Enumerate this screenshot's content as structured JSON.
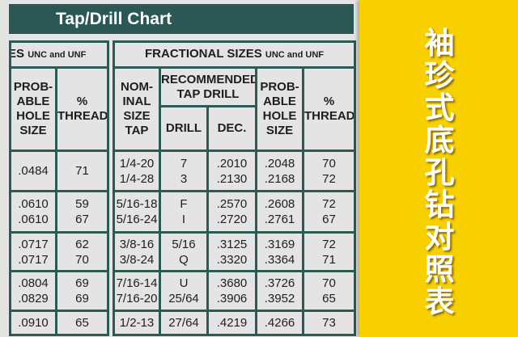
{
  "title": "Tap/Drill Chart",
  "left_table": {
    "group_header_main": "ES",
    "group_header_sub": "UNC and UNF",
    "headers": {
      "hole": [
        "PROB-",
        "ABLE",
        "HOLE",
        "SIZE"
      ],
      "thread": [
        "%",
        "THREAD"
      ]
    },
    "rows": [
      {
        "hole": [
          ".0484"
        ],
        "thread": [
          "71"
        ]
      },
      {
        "hole": [
          ".0610",
          ".0610"
        ],
        "thread": [
          "59",
          "67"
        ]
      },
      {
        "hole": [
          ".0717",
          ".0717"
        ],
        "thread": [
          "62",
          "70"
        ]
      },
      {
        "hole": [
          ".0804",
          ".0829"
        ],
        "thread": [
          "69",
          "69"
        ]
      },
      {
        "hole": [
          ".0910"
        ],
        "thread": [
          "65"
        ]
      }
    ]
  },
  "right_table": {
    "group_header_main": "FRACTIONAL SIZES",
    "group_header_sub": "UNC and UNF",
    "headers": {
      "nominal": [
        "NOM-",
        "INAL",
        "SIZE",
        "TAP"
      ],
      "recommended": [
        "RECOMMENDED",
        "TAP DRILL"
      ],
      "drill": "DRILL",
      "dec": "DEC.",
      "hole": [
        "PROB-",
        "ABLE",
        "HOLE",
        "SIZE"
      ],
      "thread": [
        "%",
        "THREAD"
      ]
    },
    "rows": [
      {
        "tap": [
          "1/4-20",
          "1/4-28"
        ],
        "drill": [
          "7",
          "3"
        ],
        "dec": [
          ".2010",
          ".2130"
        ],
        "hole": [
          ".2048",
          ".2168"
        ],
        "thread": [
          "70",
          "72"
        ]
      },
      {
        "tap": [
          "5/16-18",
          "5/16-24"
        ],
        "drill": [
          "F",
          "I"
        ],
        "dec": [
          ".2570",
          ".2720"
        ],
        "hole": [
          ".2608",
          ".2761"
        ],
        "thread": [
          "72",
          "67"
        ]
      },
      {
        "tap": [
          "3/8-16",
          "3/8-24"
        ],
        "drill": [
          "5/16",
          "Q"
        ],
        "dec": [
          ".3125",
          ".3320"
        ],
        "hole": [
          ".3169",
          ".3364"
        ],
        "thread": [
          "72",
          "71"
        ]
      },
      {
        "tap": [
          "7/16-14",
          "7/16-20"
        ],
        "drill": [
          "U",
          "25/64"
        ],
        "dec": [
          ".3680",
          ".3906"
        ],
        "hole": [
          ".3726",
          ".3952"
        ],
        "thread": [
          "70",
          "65"
        ]
      },
      {
        "tap": [
          "1/2-13"
        ],
        "drill": [
          "27/64"
        ],
        "dec": [
          ".4219"
        ],
        "hole": [
          ".4266"
        ],
        "thread": [
          "73"
        ]
      }
    ]
  },
  "side_caption": "袖珍式底孔钻对照表",
  "colors": {
    "header_bar": "#2b5854",
    "grid": "#2d5a55",
    "side_panel": "#f8d000"
  }
}
